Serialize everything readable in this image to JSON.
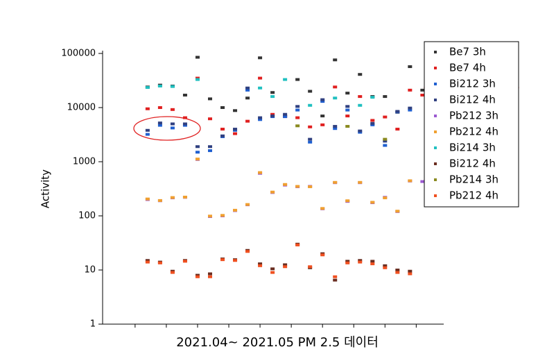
{
  "chart_data": {
    "type": "scatter",
    "x_label": "2021.04~ 2021.05 PM 2.5 데이터",
    "y_label": "Activity",
    "log_y": true,
    "legend": "upper right",
    "x": [
      1,
      2,
      3,
      4,
      5,
      6,
      7,
      8,
      9,
      10,
      11,
      12,
      13,
      14,
      15,
      16,
      17,
      18,
      19,
      20,
      21,
      22,
      23,
      24
    ],
    "xlim": [
      -2.6,
      24.7
    ],
    "xticks": [
      0,
      2.5,
      5,
      7.5,
      10,
      12.5,
      15,
      17.5,
      20,
      22.5
    ],
    "ylim": [
      1,
      100000
    ],
    "yticks": [
      1,
      10,
      100,
      1000,
      10000,
      100000
    ],
    "series": [
      {
        "name": "Be7 3h",
        "color": "#333333",
        "values": [
          24000,
          26000,
          25000,
          17000,
          85000,
          14500,
          10000,
          8800,
          15000,
          83000,
          19000,
          7000,
          33000,
          20000,
          7000,
          76000,
          18500,
          41000,
          16000,
          16000,
          8200,
          57000,
          21000,
          null
        ]
      },
      {
        "name": "Be7 4h",
        "color": "#e02020",
        "values": [
          9500,
          10000,
          9200,
          6500,
          35000,
          6200,
          4000,
          3300,
          5600,
          35000,
          7500,
          6800,
          6500,
          4400,
          4800,
          24000,
          7000,
          16000,
          5800,
          6700,
          4000,
          21000,
          17000,
          null
        ]
      },
      {
        "name": "Bi212 3h",
        "color": "#1f5fd0",
        "values": [
          3200,
          4700,
          4200,
          4700,
          1500,
          1600,
          2900,
          3800,
          21000,
          6000,
          6800,
          6800,
          9000,
          2300,
          13000,
          4100,
          9000,
          3500,
          4800,
          2000,
          8300,
          9000,
          null,
          null
        ]
      },
      {
        "name": "Bi212 4h",
        "color": "#304080",
        "values": [
          3800,
          5200,
          5000,
          5000,
          1900,
          1900,
          3000,
          4000,
          23000,
          6500,
          7000,
          7500,
          10500,
          2600,
          14000,
          4500,
          10500,
          3700,
          5100,
          2400,
          8500,
          9800,
          null,
          null
        ]
      },
      {
        "name": "Pb212 3h",
        "color": "#9b59d0",
        "values": [
          200,
          190,
          215,
          220,
          1100,
          97,
          100,
          125,
          160,
          610,
          270,
          370,
          345,
          350,
          135,
          410,
          185,
          410,
          175,
          220,
          120,
          440,
          430,
          null
        ]
      },
      {
        "name": "Pb212 4h",
        "color": "#f0a030",
        "values": [
          205,
          192,
          218,
          222,
          1120,
          99,
          102,
          127,
          162,
          630,
          275,
          380,
          350,
          345,
          137,
          415,
          190,
          415,
          178,
          215,
          122,
          445,
          null,
          null
        ]
      },
      {
        "name": "Bi214 3h",
        "color": "#20c0c0",
        "values": [
          23500,
          25000,
          24500,
          null,
          33000,
          null,
          null,
          null,
          null,
          23000,
          16000,
          33000,
          null,
          11000,
          null,
          15000,
          null,
          11000,
          15500,
          null,
          null,
          null,
          null,
          null
        ]
      },
      {
        "name": "Bi212 4h",
        "color": "#6a2d20",
        "values": [
          15,
          14,
          9.5,
          15,
          8,
          8.5,
          16,
          15.5,
          23,
          13,
          10.5,
          12.5,
          30,
          11,
          20,
          6.5,
          14.5,
          15,
          14.5,
          12,
          10,
          9.5,
          null,
          null
        ]
      },
      {
        "name": "Pb214 3h",
        "color": "#8a8a20",
        "values": [
          null,
          null,
          null,
          null,
          null,
          null,
          null,
          null,
          null,
          null,
          null,
          null,
          4600,
          null,
          null,
          null,
          4500,
          null,
          null,
          2600,
          null,
          null,
          null,
          null
        ]
      },
      {
        "name": "Pb212 4h",
        "color": "#f05020",
        "values": [
          14,
          13.5,
          9,
          14.5,
          7.5,
          7.5,
          15.5,
          15,
          22,
          12,
          9,
          11.5,
          29,
          11.5,
          19,
          7.5,
          13.5,
          14,
          13,
          11,
          9,
          8.5,
          null,
          null
        ]
      }
    ]
  }
}
